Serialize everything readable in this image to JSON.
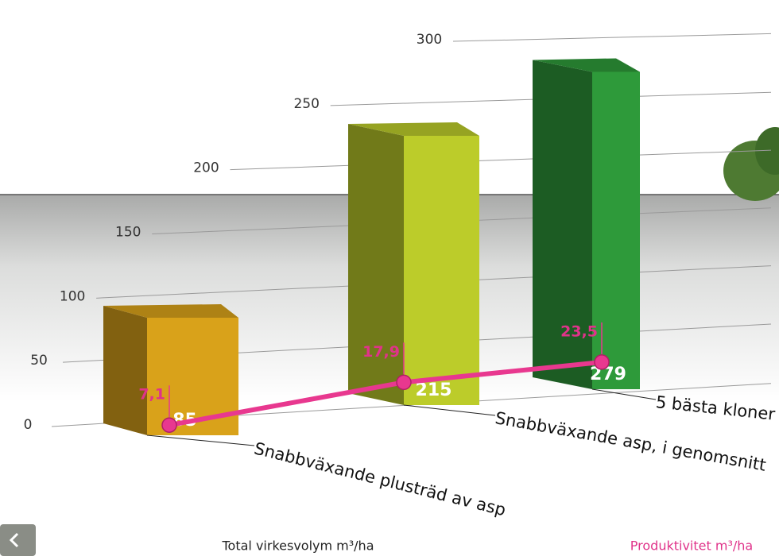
{
  "chart_data": {
    "type": "bar",
    "categories": [
      "Snabbväxande plusträd av asp",
      "Snabbväxande asp, i genomsnitt",
      "5 bästa kloner"
    ],
    "series": [
      {
        "name": "Total virkesvolym m³/ha",
        "colors": [
          "#d9a21a",
          "#bccc2a",
          "#2e9a3a"
        ],
        "values": [
          85,
          215,
          279
        ]
      },
      {
        "name": "Produktivitet m³/ha",
        "type": "line",
        "color": "#e8388f",
        "values": [
          7.1,
          17.9,
          23.5
        ],
        "value_labels": [
          "7,1",
          "17,9",
          "23,5"
        ]
      }
    ],
    "ylim": [
      0,
      300
    ],
    "yticks": [
      0,
      50,
      100,
      150,
      200,
      250,
      300
    ],
    "grid": true
  }
}
